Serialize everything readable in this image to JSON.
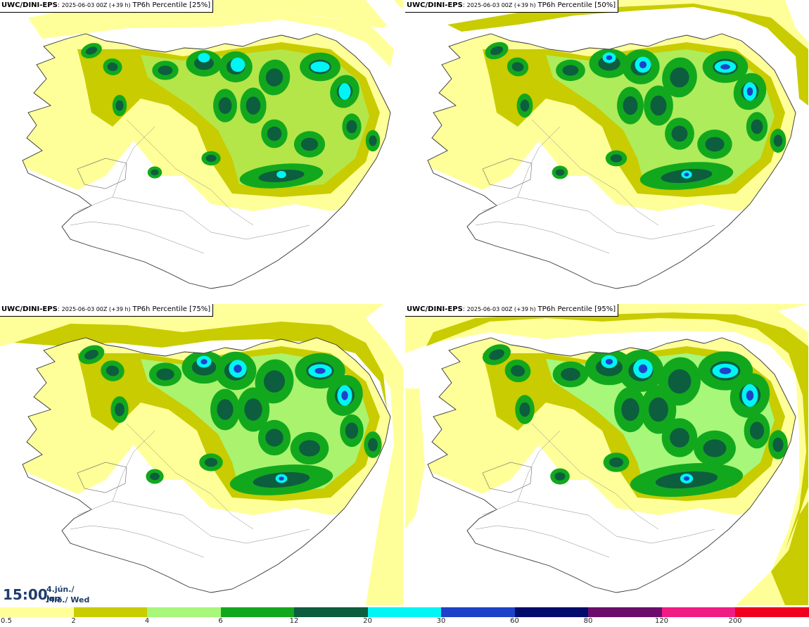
{
  "panels": [
    {
      "source": "UWC/DINI-EPS",
      "run": "2025-06-03 00Z (+39 h)",
      "label": "TP6h Percentile [25%]"
    },
    {
      "source": "UWC/DINI-EPS",
      "run": "2025-06-03 00Z (+39 h)",
      "label": "TP6h Percentile [50%]"
    },
    {
      "source": "UWC/DINI-EPS",
      "run": "2025-06-03 00Z (+39 h)",
      "label": "TP6h Percentile [75%]"
    },
    {
      "source": "UWC/DINI-EPS",
      "run": "2025-06-03 00Z (+39 h)",
      "label": "TP6h Percentile [95%]"
    }
  ],
  "valid_time": {
    "time": "15:00",
    "date_line1": "4.jún./ Jun",
    "date_line2": "Mið./ Wed"
  },
  "legend": {
    "levels": [
      "0.5",
      "2",
      "4",
      "6",
      "12",
      "20",
      "30",
      "60",
      "80",
      "120",
      "200"
    ],
    "colors": [
      "#ffff99",
      "#c8cc00",
      "#a6f77a",
      "#12a81e",
      "#0d5e3e",
      "#00f5f5",
      "#1f41c8",
      "#000c6b",
      "#6b0d6b",
      "#f01c84",
      "#f0001e"
    ]
  },
  "palette": {
    "land_light": "#ffff99",
    "land_olive": "#c8cc00",
    "light_green": "#a6f77a",
    "green": "#12a81e",
    "dark_green": "#0d5e3e",
    "cyan": "#00f5f5",
    "blue": "#1f41c8"
  }
}
